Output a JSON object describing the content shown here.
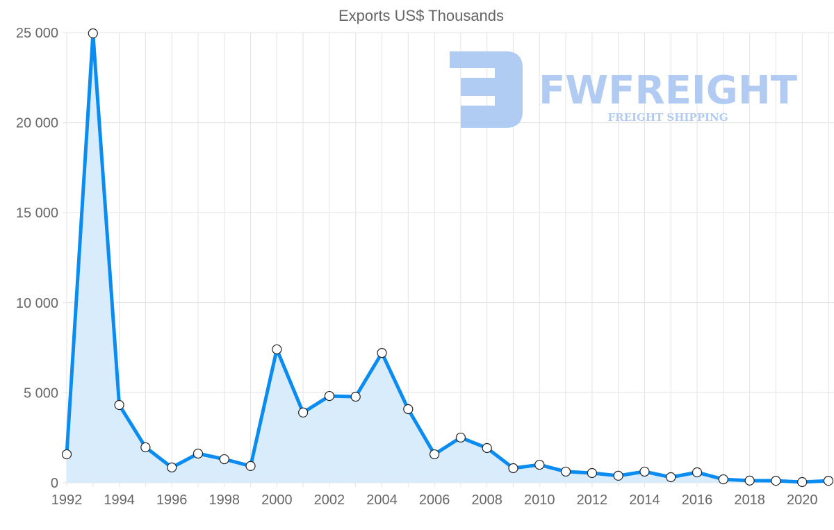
{
  "chart_data": {
    "type": "area",
    "title": "Exports US$ Thousands",
    "xlabel": "",
    "ylabel": "",
    "ylim": [
      0,
      25000
    ],
    "xlim": [
      1992,
      2021
    ],
    "grid": true,
    "y_ticks": [
      "0",
      "5 000",
      "10 000",
      "15 000",
      "20 000",
      "25 000"
    ],
    "y_tick_values": [
      0,
      5000,
      10000,
      15000,
      20000,
      25000
    ],
    "x_ticks": [
      "1992",
      "1994",
      "1996",
      "1998",
      "2000",
      "2002",
      "2004",
      "2006",
      "2008",
      "2010",
      "2012",
      "2014",
      "2016",
      "2018",
      "2020"
    ],
    "series": [
      {
        "name": "Exports US$ Thousands",
        "color": "#0a8cf0",
        "fill": "#d9ecfc",
        "x": [
          1992,
          1993,
          1994,
          1995,
          1996,
          1997,
          1998,
          1999,
          2000,
          2001,
          2002,
          2003,
          2004,
          2005,
          2006,
          2007,
          2008,
          2009,
          2010,
          2011,
          2012,
          2013,
          2014,
          2015,
          2016,
          2017,
          2018,
          2019,
          2020,
          2021
        ],
        "values": [
          1580,
          24960,
          4320,
          1970,
          850,
          1620,
          1310,
          930,
          7410,
          3900,
          4820,
          4780,
          7210,
          4090,
          1580,
          2510,
          1930,
          810,
          1000,
          620,
          540,
          390,
          620,
          310,
          580,
          190,
          120,
          110,
          40,
          110
        ]
      }
    ]
  },
  "watermark": {
    "brand": "FWFREIGHT",
    "tagline": "FREIGHT SHIPPING",
    "color": "#a9c6f2"
  }
}
